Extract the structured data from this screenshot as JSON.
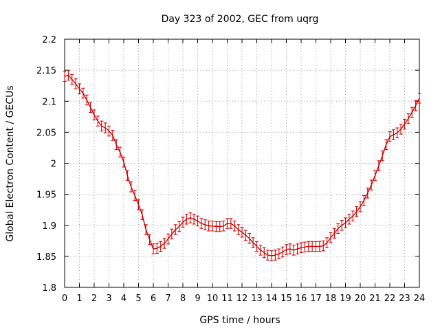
{
  "chart_data": {
    "type": "line",
    "title": "Day 323 of 2002, GEC from uqrg",
    "xlabel": "GPS time / hours",
    "ylabel": "Global Electron Content / GECUs",
    "xlim": [
      0,
      24
    ],
    "ylim": [
      1.8,
      2.2
    ],
    "grid": true,
    "color": "#cc0000",
    "x_ticks": [
      "0",
      "1",
      "2",
      "3",
      "4",
      "5",
      "6",
      "7",
      "8",
      "9",
      "10",
      "11",
      "12",
      "13",
      "14",
      "15",
      "16",
      "17",
      "18",
      "19",
      "20",
      "21",
      "22",
      "23",
      "24"
    ],
    "y_ticks": [
      "1.8",
      "1.85",
      "1.9",
      "1.95",
      "2",
      "2.05",
      "2.1",
      "2.15",
      "2.2"
    ],
    "error": 0.008,
    "series": [
      {
        "x": [
          0.0,
          0.25,
          0.5,
          0.75,
          1.0,
          1.25,
          1.5,
          1.75,
          2.0,
          2.25,
          2.5,
          2.75,
          3.0,
          3.25,
          3.5,
          3.75,
          4.0,
          4.25,
          4.5,
          4.75,
          5.0,
          5.25,
          5.5,
          5.75,
          6.0,
          6.25,
          6.5,
          6.75,
          7.0,
          7.25,
          7.5,
          7.75,
          8.0,
          8.25,
          8.5,
          8.75,
          9.0,
          9.25,
          9.5,
          9.75,
          10.0,
          10.25,
          10.5,
          10.75,
          11.0,
          11.25,
          11.5,
          11.75,
          12.0,
          12.25,
          12.5,
          12.75,
          13.0,
          13.25,
          13.5,
          13.75,
          14.0,
          14.25,
          14.5,
          14.75,
          15.0,
          15.25,
          15.5,
          15.75,
          16.0,
          16.25,
          16.5,
          16.75,
          17.0,
          17.25,
          17.5,
          17.75,
          18.0,
          18.25,
          18.5,
          18.75,
          19.0,
          19.25,
          19.5,
          19.75,
          20.0,
          20.25,
          20.5,
          20.75,
          21.0,
          21.25,
          21.5,
          21.75,
          22.0,
          22.25,
          22.5,
          22.75,
          23.0,
          23.25,
          23.5,
          23.75,
          24.0
        ],
        "y": [
          2.14,
          2.142,
          2.135,
          2.128,
          2.12,
          2.113,
          2.102,
          2.09,
          2.078,
          2.068,
          2.06,
          2.057,
          2.052,
          2.045,
          2.03,
          2.018,
          2.002,
          1.98,
          1.962,
          1.948,
          1.933,
          1.917,
          1.893,
          1.877,
          1.862,
          1.863,
          1.866,
          1.871,
          1.878,
          1.886,
          1.893,
          1.898,
          1.905,
          1.91,
          1.912,
          1.91,
          1.907,
          1.903,
          1.901,
          1.899,
          1.899,
          1.898,
          1.898,
          1.899,
          1.903,
          1.903,
          1.899,
          1.893,
          1.889,
          1.884,
          1.879,
          1.872,
          1.866,
          1.86,
          1.856,
          1.852,
          1.851,
          1.852,
          1.854,
          1.857,
          1.861,
          1.862,
          1.86,
          1.862,
          1.864,
          1.865,
          1.866,
          1.866,
          1.866,
          1.866,
          1.867,
          1.872,
          1.88,
          1.887,
          1.895,
          1.9,
          1.904,
          1.91,
          1.915,
          1.922,
          1.93,
          1.94,
          1.952,
          1.965,
          1.98,
          1.996,
          2.012,
          2.03,
          2.043,
          2.046,
          2.049,
          2.055,
          2.063,
          2.072,
          2.082,
          2.093,
          2.105
        ]
      }
    ]
  }
}
